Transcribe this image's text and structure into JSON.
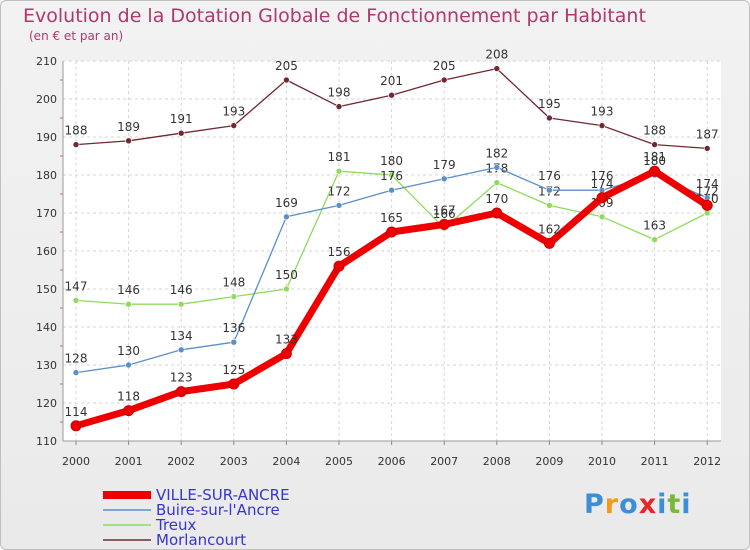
{
  "chart_data": {
    "type": "line",
    "title": "Evolution de la Dotation Globale de Fonctionnement par Habitant",
    "subtitle": "(en € et par an)",
    "x": [
      "2000",
      "2001",
      "2002",
      "2003",
      "2004",
      "2005",
      "2006",
      "2007",
      "2008",
      "2009",
      "2010",
      "2011",
      "2012"
    ],
    "ylim": [
      110,
      210
    ],
    "yticks": [
      "110",
      "120",
      "130",
      "140",
      "150",
      "160",
      "170",
      "180",
      "190",
      "200",
      "210"
    ],
    "grid": true,
    "series": [
      {
        "name": "Morlancourt",
        "color": "#732830",
        "values": [
          188,
          189,
          191,
          193,
          205,
          198,
          201,
          205,
          208,
          195,
          193,
          188,
          187
        ],
        "labels": [
          "188",
          "189",
          "191",
          "193",
          "205",
          "198",
          "201",
          "205",
          "208",
          "195",
          "193",
          "188",
          "187"
        ]
      },
      {
        "name": "Treux",
        "color": "#8fdc5c",
        "values": [
          147,
          146,
          146,
          148,
          150,
          181,
          180,
          166,
          178,
          172,
          169,
          163,
          170
        ],
        "labels": [
          "147",
          "146",
          "146",
          "148",
          "150",
          "181",
          "180",
          "166",
          "178",
          "172",
          "169",
          "163",
          "170"
        ]
      },
      {
        "name": "Buire-sur-l'Ancre",
        "color": "#5a8fc8",
        "values": [
          128,
          130,
          134,
          136,
          169,
          172,
          176,
          179,
          182,
          176,
          176,
          180,
          174
        ],
        "labels": [
          "128",
          "130",
          "134",
          "136",
          "169",
          "172",
          "176",
          "179",
          "182",
          "176",
          "176",
          "180",
          "174"
        ]
      },
      {
        "name": "VILLE-SUR-ANCRE",
        "color": "#ee0000",
        "values": [
          114,
          118,
          123,
          125,
          133,
          156,
          165,
          167,
          170,
          162,
          174,
          181,
          172
        ],
        "labels": [
          "114",
          "118",
          "123",
          "125",
          "133",
          "156",
          "165",
          "167",
          "170",
          "162",
          "174",
          "181",
          "172"
        ]
      }
    ],
    "legend": [
      "VILLE-SUR-ANCRE",
      "Buire-sur-l'Ancre",
      "Treux",
      "Morlancourt"
    ]
  },
  "logo": {
    "text": "Proxiti",
    "letters": [
      "P",
      "r",
      "o",
      "x",
      "i",
      "t",
      "i"
    ],
    "colors": [
      "#3c8fd6",
      "#f29a1a",
      "#3c8fd6",
      "#e8262a",
      "#3c8fd6",
      "#79b83a",
      "#3c8fd6"
    ]
  }
}
